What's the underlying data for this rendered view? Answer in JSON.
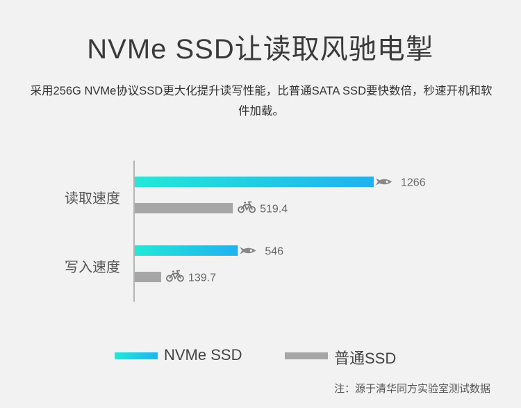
{
  "header": {
    "title": "NVMe SSD让读取风驰电掣",
    "subtitle": "采用256G NVMe协议SSD更大化提升读写性能，比普通SATA SSD要快数倍，秒速开机和软件加载。"
  },
  "legend": {
    "nvme_label": "NVMe SSD",
    "normal_label": "普通SSD"
  },
  "footer": {
    "note": "注：源于清华同方实验室测试数据"
  },
  "colors": {
    "nvme_start": "#22e8d8",
    "nvme_end": "#1fb2f0",
    "normal": "#a6a6a6",
    "axis": "#777777",
    "label": "#555555",
    "value": "#666666"
  },
  "icons": {
    "nvme": "rocket-icon",
    "normal": "bicycle-icon"
  },
  "chart_data": {
    "type": "bar",
    "orientation": "horizontal",
    "categories": [
      "读取速度",
      "写入速度"
    ],
    "series": [
      {
        "name": "NVMe SSD",
        "values": [
          1266,
          546
        ],
        "labels": [
          "1266",
          "546"
        ]
      },
      {
        "name": "普通SSD",
        "values": [
          519.4,
          139.7
        ],
        "labels": [
          "519.4",
          "139.7"
        ]
      }
    ],
    "xlim": [
      0,
      1266
    ],
    "grid": false,
    "legend_position": "bottom"
  }
}
